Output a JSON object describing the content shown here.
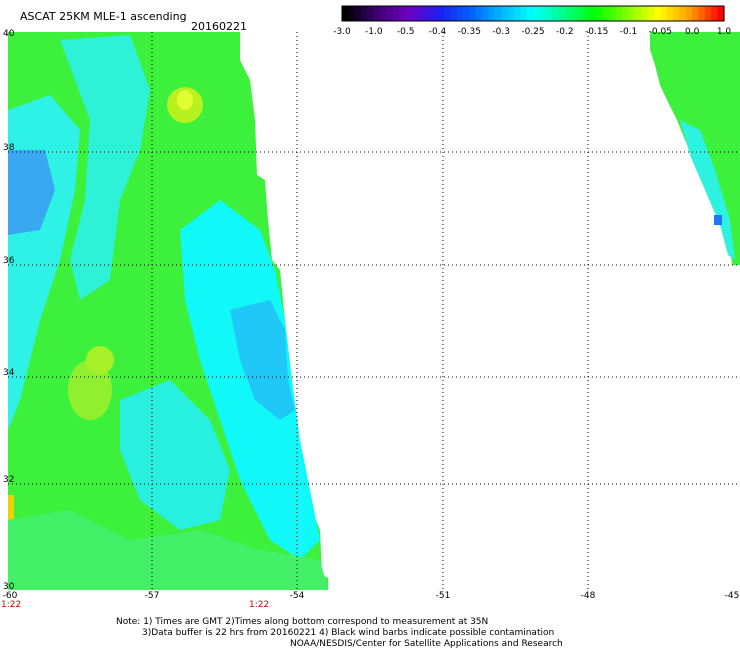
{
  "header": {
    "title": "ASCAT 25KM MLE-1 ascending",
    "date": "20160221"
  },
  "colorbar": {
    "labels": [
      "-3.0",
      "-1.0",
      "-0.5",
      "-0.4",
      "-0.35",
      "-0.3",
      "-0.25",
      "-0.2",
      "-0.15",
      "-0.1",
      "-0.05",
      "0.0",
      "1.0"
    ],
    "colors": [
      "#000000",
      "#3a0070",
      "#7000c0",
      "#1e1ef0",
      "#0060ff",
      "#00b8ff",
      "#00ffff",
      "#00ff88",
      "#00ff00",
      "#80ff00",
      "#ffff00",
      "#ffa000",
      "#ff0000"
    ]
  },
  "axes": {
    "lon_ticks": [
      "-60",
      "-57",
      "-54",
      "-51",
      "-48",
      "-45"
    ],
    "lat_ticks": [
      "40",
      "38",
      "36",
      "34",
      "32",
      "30"
    ],
    "time_labels": [
      "1:22",
      "1:22"
    ]
  },
  "notes": {
    "line1": "Note: 1) Times are GMT 2)Times along bottom correspond to measurement at 35N",
    "line2": "3)Data buffer is 22 hrs from 20160221 4) Black wind barbs indicate possible contamination",
    "line3": "NOAA/NESDIS/Center for Satellite Applications and Research"
  }
}
